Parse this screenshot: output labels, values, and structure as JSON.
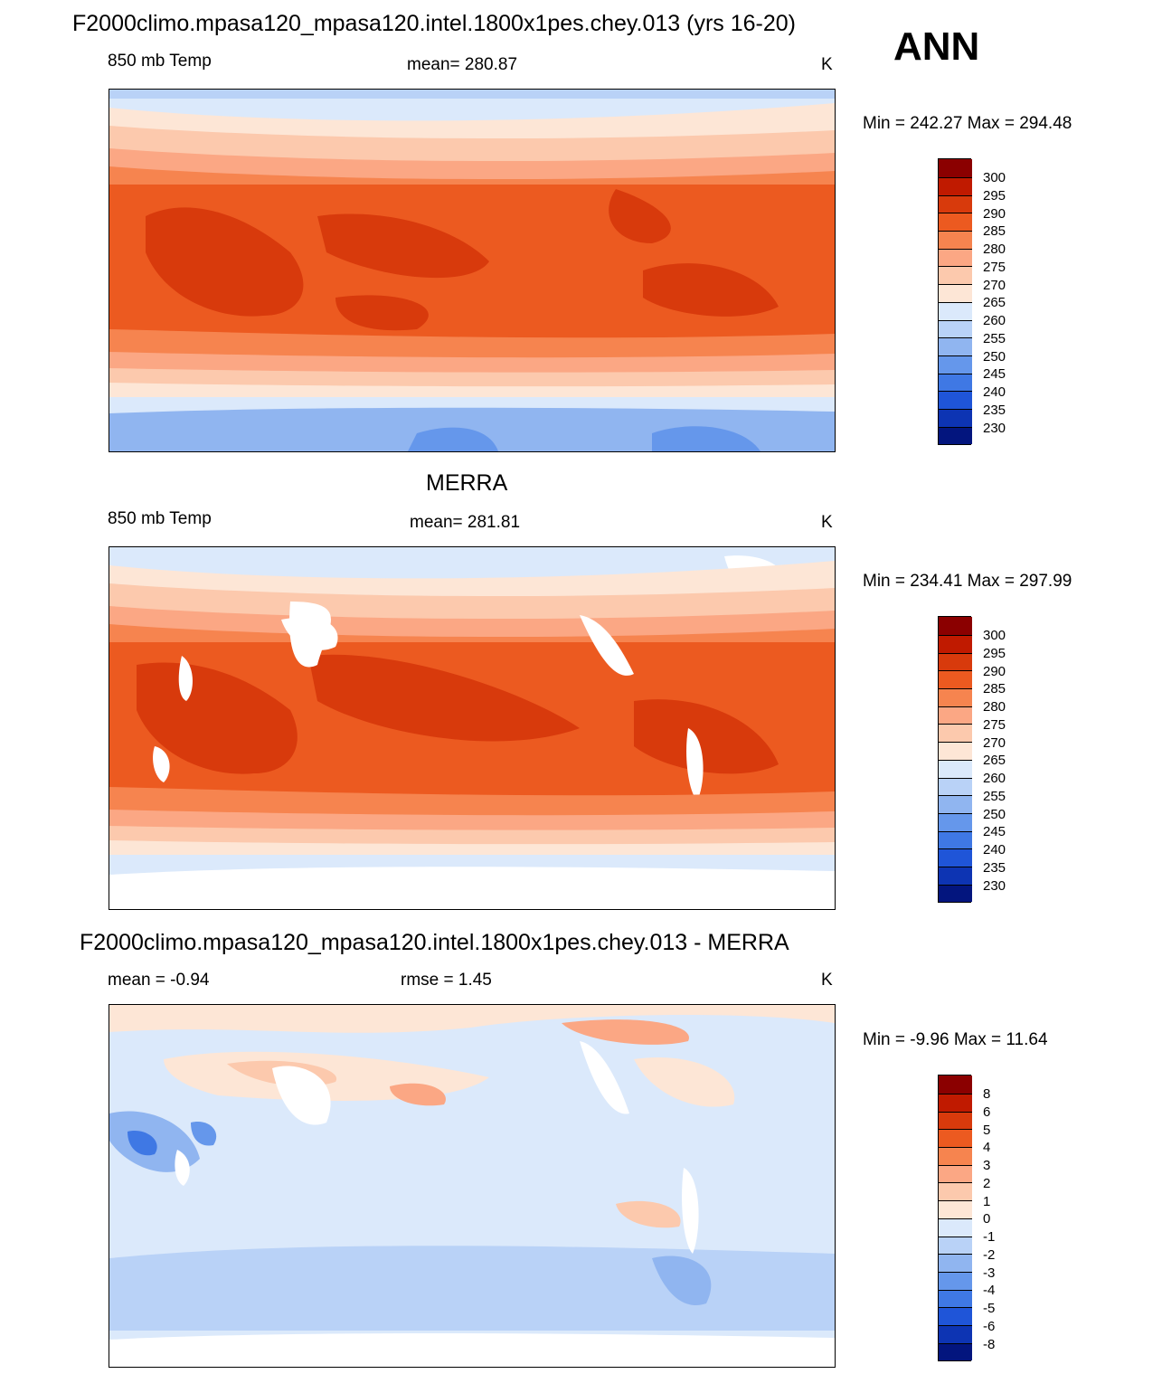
{
  "season": "ANN",
  "chart_data": [
    {
      "type": "heatmap",
      "title": "F2000climo.mpasa120_mpasa120.intel.1800x1pes.chey.013 (yrs 16-20)",
      "left_label": "850 mb Temp",
      "center_label": "mean= 280.87",
      "units": "K",
      "minmax": "Min = 242.27 Max = 294.48",
      "min": 242.27,
      "max": 294.48,
      "colorbar_levels": [
        "300",
        "295",
        "290",
        "285",
        "280",
        "275",
        "270",
        "265",
        "260",
        "255",
        "250",
        "245",
        "240",
        "235",
        "230"
      ],
      "colorbar_colors": [
        "#8b0000",
        "#c01a00",
        "#d83a0c",
        "#ec5a20",
        "#f6844f",
        "#fba784",
        "#fcc9ad",
        "#fde6d6",
        "#dbe9fb",
        "#b9d2f7",
        "#90b5f0",
        "#6597eb",
        "#3f78e4",
        "#1f55d8",
        "#0d34b3",
        "#03157e"
      ]
    },
    {
      "type": "heatmap",
      "title": "MERRA",
      "left_label": "850 mb Temp",
      "center_label": "mean= 281.81",
      "units": "K",
      "minmax": "Min = 234.41 Max = 297.99",
      "min": 234.41,
      "max": 297.99,
      "colorbar_levels": [
        "300",
        "295",
        "290",
        "285",
        "280",
        "275",
        "270",
        "265",
        "260",
        "255",
        "250",
        "245",
        "240",
        "235",
        "230"
      ],
      "colorbar_colors": [
        "#8b0000",
        "#c01a00",
        "#d83a0c",
        "#ec5a20",
        "#f6844f",
        "#fba784",
        "#fcc9ad",
        "#fde6d6",
        "#dbe9fb",
        "#b9d2f7",
        "#90b5f0",
        "#6597eb",
        "#3f78e4",
        "#1f55d8",
        "#0d34b3",
        "#03157e"
      ]
    },
    {
      "type": "heatmap",
      "title": "F2000climo.mpasa120_mpasa120.intel.1800x1pes.chey.013 - MERRA",
      "left_label": "mean =  -0.94",
      "center_label": "rmse =   1.45",
      "units": "K",
      "minmax": "Min =  -9.96 Max =  11.64",
      "min": -9.96,
      "max": 11.64,
      "colorbar_levels": [
        "8",
        "6",
        "5",
        "4",
        "3",
        "2",
        "1",
        "0",
        "-1",
        "-2",
        "-3",
        "-4",
        "-5",
        "-6",
        "-8"
      ],
      "colorbar_colors": [
        "#8b0000",
        "#c01a00",
        "#d83a0c",
        "#ec5a20",
        "#f6844f",
        "#fba784",
        "#fcc9ad",
        "#fde6d6",
        "#dbe9fb",
        "#b9d2f7",
        "#90b5f0",
        "#6597eb",
        "#3f78e4",
        "#1f55d8",
        "#0d34b3",
        "#03157e"
      ]
    }
  ]
}
